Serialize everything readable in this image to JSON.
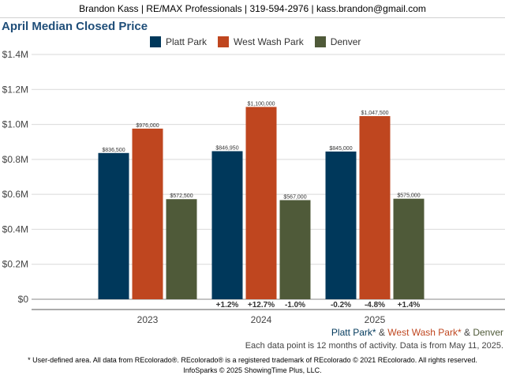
{
  "header": {
    "text": "Brandon Kass | RE/MAX Professionals | 319-594-2976 | kass.brandon@gmail.com"
  },
  "colors": {
    "platt_park": "#00385b",
    "west_wash_park": "#bf461f",
    "denver": "#4f5a39",
    "title": "#1f4e79"
  },
  "chart_data": {
    "type": "bar",
    "title": "April Median Closed Price",
    "categories": [
      "2023",
      "2024",
      "2025"
    ],
    "series": [
      {
        "name": "Platt Park",
        "values": [
          836500,
          846950,
          845000
        ],
        "value_labels": [
          "$836,500",
          "$846,950",
          "$845,000"
        ],
        "change_labels": [
          "",
          "+1.2%",
          "-0.2%"
        ]
      },
      {
        "name": "West Wash Park",
        "values": [
          976000,
          1100000,
          1047500
        ],
        "value_labels": [
          "$976,000",
          "$1,100,000",
          "$1,047,500"
        ],
        "change_labels": [
          "",
          "+12.7%",
          "-4.8%"
        ]
      },
      {
        "name": "Denver",
        "values": [
          572500,
          567000,
          575000
        ],
        "value_labels": [
          "$572,500",
          "$567,000",
          "$575,000"
        ],
        "change_labels": [
          "",
          "-1.0%",
          "+1.4%"
        ]
      }
    ],
    "ylim": [
      0,
      1400000
    ],
    "yticks": [
      0,
      200000,
      400000,
      600000,
      800000,
      1000000,
      1200000,
      1400000
    ],
    "ytick_labels": [
      "$0",
      "$0.2M",
      "$0.4M",
      "$0.6M",
      "$0.8M",
      "$1.0M",
      "$1.2M",
      "$1.4M"
    ],
    "grid": true,
    "legend_position": "top-center"
  },
  "footer": {
    "series_names": [
      "Platt Park*",
      "West Wash Park*",
      "Denver"
    ],
    "separator": " & ",
    "note": "Each data point is 12 months of activity. Data is from May 11, 2025.",
    "legal_line1": "* User-defined area. All data from REcolorado®. REcolorado® is a registered trademark of REcolorado © 2021 REcolorado. All rights reserved.",
    "legal_line2": "InfoSparks © 2025 ShowingTime Plus, LLC."
  }
}
